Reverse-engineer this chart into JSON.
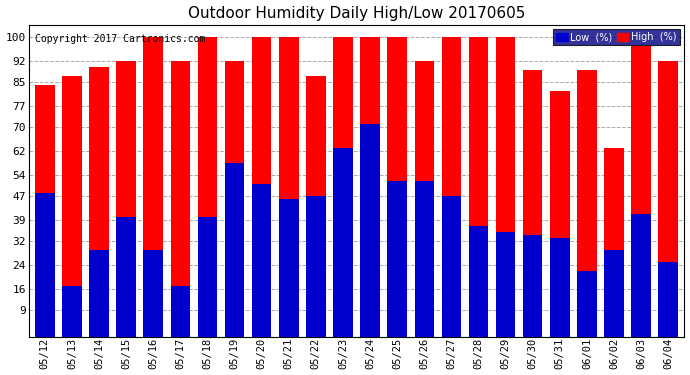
{
  "title": "Outdoor Humidity Daily High/Low 20170605",
  "copyright": "Copyright 2017 Cartronics.com",
  "dates": [
    "05/12",
    "05/13",
    "05/14",
    "05/15",
    "05/16",
    "05/17",
    "05/18",
    "05/19",
    "05/20",
    "05/21",
    "05/22",
    "05/23",
    "05/24",
    "05/25",
    "05/26",
    "05/27",
    "05/28",
    "05/29",
    "05/30",
    "05/31",
    "06/01",
    "06/02",
    "06/03",
    "06/04"
  ],
  "high": [
    84,
    87,
    90,
    92,
    100,
    92,
    100,
    92,
    100,
    100,
    87,
    100,
    100,
    100,
    92,
    100,
    100,
    100,
    89,
    82,
    89,
    63,
    97,
    92
  ],
  "low": [
    48,
    17,
    29,
    40,
    29,
    17,
    40,
    58,
    51,
    46,
    47,
    63,
    71,
    52,
    52,
    47,
    37,
    35,
    34,
    33,
    22,
    29,
    41,
    25
  ],
  "high_color": "#ff0000",
  "low_color": "#0000cc",
  "bg_color": "#ffffff",
  "grid_color": "#aaaaaa",
  "yticks": [
    9,
    16,
    24,
    32,
    39,
    47,
    54,
    62,
    70,
    77,
    85,
    92,
    100
  ],
  "ymin": 0,
  "ymax": 104,
  "bar_width": 0.72,
  "legend_bg": "#000080"
}
